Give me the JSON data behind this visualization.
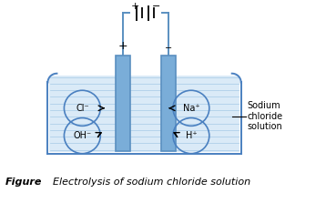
{
  "bg_color": "#ffffff",
  "solution_color": "#daeaf7",
  "solution_line_color": "#7ab0d8",
  "electrode_color": "#5a8fc0",
  "electrode_face_color": "#7aadd8",
  "beaker_line_color": "#4a80c0",
  "circuit_line_color": "#5a8fc0",
  "ion_circle_color": "#4a80c0",
  "title": "Figure",
  "caption": "Electrolysis of sodium chloride solution",
  "annotation_text": [
    "Sodium",
    "chloride",
    "solution"
  ]
}
